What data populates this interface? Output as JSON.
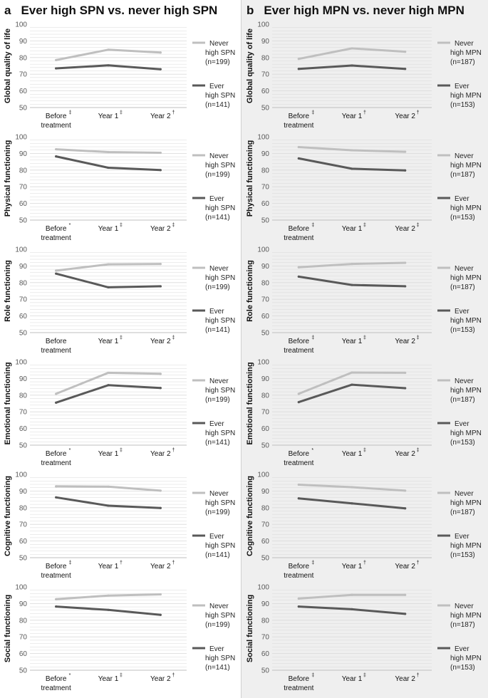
{
  "panels": [
    {
      "letter": "a",
      "title": "Ever high SPN vs. never high SPN"
    },
    {
      "letter": "b",
      "title": "Ever high MPN vs. never high MPN"
    }
  ],
  "colors": {
    "never": "#bfbfbf",
    "ever": "#595959",
    "grid": "#d9d9d9",
    "axis": "#bfbfbf"
  },
  "chart_data": [
    {
      "type": "line",
      "panel": "a",
      "ylabel": "Global quality of life",
      "categories": [
        "Before treatment",
        "Year 1",
        "Year 2"
      ],
      "significance": [
        "‡",
        "‡",
        "†"
      ],
      "ylim": [
        50,
        100
      ],
      "yticks": [
        50,
        60,
        70,
        80,
        90,
        100
      ],
      "series": [
        {
          "name": "Never high SPN (n=199)",
          "key": "never",
          "legend": [
            "Never",
            "high SPN",
            "(n=199)"
          ],
          "values": [
            78.5,
            84.7,
            83.0
          ]
        },
        {
          "name": "Ever high SPN (n=141)",
          "key": "ever",
          "legend": [
            "Ever",
            "high SPN",
            "(n=141)"
          ],
          "values": [
            73.5,
            75.3,
            73.0
          ]
        }
      ]
    },
    {
      "type": "line",
      "panel": "a",
      "ylabel": "Physical functioning",
      "categories": [
        "Before treatment",
        "Year 1",
        "Year 2"
      ],
      "significance": [
        "*",
        "‡",
        "‡"
      ],
      "ylim": [
        50,
        100
      ],
      "yticks": [
        50,
        60,
        70,
        80,
        90,
        100
      ],
      "series": [
        {
          "name": "Never high SPN (n=199)",
          "key": "never",
          "legend": [
            "Never",
            "high SPN",
            "(n=199)"
          ],
          "values": [
            92.5,
            90.8,
            90.4
          ]
        },
        {
          "name": "Ever high SPN (n=141)",
          "key": "ever",
          "legend": [
            "Ever",
            "high SPN",
            "(n=141)"
          ],
          "values": [
            88.2,
            81.4,
            80.0
          ]
        }
      ]
    },
    {
      "type": "line",
      "panel": "a",
      "ylabel": "Role functioning",
      "categories": [
        "Before treatment",
        "Year 1",
        "Year 2"
      ],
      "significance": [
        "",
        "‡",
        "‡"
      ],
      "ylim": [
        50,
        100
      ],
      "yticks": [
        50,
        60,
        70,
        80,
        90,
        100
      ],
      "series": [
        {
          "name": "Never high SPN (n=199)",
          "key": "never",
          "legend": [
            "Never",
            "high SPN",
            "(n=199)"
          ],
          "values": [
            87.2,
            91.0,
            91.2
          ]
        },
        {
          "name": "Ever high SPN (n=141)",
          "key": "ever",
          "legend": [
            "Ever",
            "high SPN",
            "(n=141)"
          ],
          "values": [
            85.4,
            77.2,
            77.8
          ]
        }
      ]
    },
    {
      "type": "line",
      "panel": "a",
      "ylabel": "Emotional functioning",
      "categories": [
        "Before treatment",
        "Year 1",
        "Year 2"
      ],
      "significance": [
        "*",
        "‡",
        "†"
      ],
      "ylim": [
        50,
        100
      ],
      "yticks": [
        50,
        60,
        70,
        80,
        90,
        100
      ],
      "series": [
        {
          "name": "Never high SPN (n=199)",
          "key": "never",
          "legend": [
            "Never",
            "high SPN",
            "(n=199)"
          ],
          "values": [
            80.8,
            93.4,
            92.8
          ]
        },
        {
          "name": "Ever high SPN (n=141)",
          "key": "ever",
          "legend": [
            "Ever",
            "high SPN",
            "(n=141)"
          ],
          "values": [
            75.5,
            86.0,
            84.3
          ]
        }
      ]
    },
    {
      "type": "line",
      "panel": "a",
      "ylabel": "Cognitive functioning",
      "categories": [
        "Before treatment",
        "Year 1",
        "Year 2"
      ],
      "significance": [
        "‡",
        "†",
        "†"
      ],
      "ylim": [
        50,
        100
      ],
      "yticks": [
        50,
        60,
        70,
        80,
        90,
        100
      ],
      "series": [
        {
          "name": "Never high SPN (n=199)",
          "key": "never",
          "legend": [
            "Never",
            "high SPN",
            "(n=199)"
          ],
          "values": [
            92.8,
            92.6,
            90.2
          ]
        },
        {
          "name": "Ever high SPN (n=141)",
          "key": "ever",
          "legend": [
            "Ever",
            "high SPN",
            "(n=141)"
          ],
          "values": [
            86.2,
            81.2,
            79.8
          ]
        }
      ]
    },
    {
      "type": "line",
      "panel": "a",
      "ylabel": "Social functioning",
      "categories": [
        "Before treatment",
        "Year 1",
        "Year 2"
      ],
      "significance": [
        "*",
        "‡",
        "†"
      ],
      "ylim": [
        50,
        100
      ],
      "yticks": [
        50,
        60,
        70,
        80,
        90,
        100
      ],
      "series": [
        {
          "name": "Never high SPN (n=199)",
          "key": "never",
          "legend": [
            "Never",
            "high SPN",
            "(n=199)"
          ],
          "values": [
            92.6,
            94.8,
            95.5
          ]
        },
        {
          "name": "Ever high SPN (n=141)",
          "key": "ever",
          "legend": [
            "Ever",
            "high SPN",
            "(n=141)"
          ],
          "values": [
            88.2,
            86.2,
            83.2
          ]
        }
      ]
    },
    {
      "type": "line",
      "panel": "b",
      "ylabel": "Global quality of life",
      "categories": [
        "Before treatment",
        "Year 1",
        "Year 2"
      ],
      "significance": [
        "‡",
        "†",
        "†"
      ],
      "ylim": [
        50,
        100
      ],
      "yticks": [
        50,
        60,
        70,
        80,
        90,
        100
      ],
      "series": [
        {
          "name": "Never high MPN (n=187)",
          "key": "never",
          "legend": [
            "Never",
            "high MPN",
            "(n=187)"
          ],
          "values": [
            79.2,
            85.5,
            83.5
          ]
        },
        {
          "name": "Ever high MPN (n=153)",
          "key": "ever",
          "legend": [
            "Ever",
            "high MPN",
            "(n=153)"
          ],
          "values": [
            73.2,
            75.2,
            73.2
          ]
        }
      ]
    },
    {
      "type": "line",
      "panel": "b",
      "ylabel": "Physical functioning",
      "categories": [
        "Before treatment",
        "Year 1",
        "Year 2"
      ],
      "significance": [
        "‡",
        "‡",
        "‡"
      ],
      "ylim": [
        50,
        100
      ],
      "yticks": [
        50,
        60,
        70,
        80,
        90,
        100
      ],
      "series": [
        {
          "name": "Never high MPN (n=187)",
          "key": "never",
          "legend": [
            "Never",
            "high MPN",
            "(n=187)"
          ],
          "values": [
            93.8,
            91.9,
            91.0
          ]
        },
        {
          "name": "Ever high MPN (n=153)",
          "key": "ever",
          "legend": [
            "Ever",
            "high MPN",
            "(n=153)"
          ],
          "values": [
            87.0,
            80.8,
            79.8
          ]
        }
      ]
    },
    {
      "type": "line",
      "panel": "b",
      "ylabel": "Role functioning",
      "categories": [
        "Before treatment",
        "Year 1",
        "Year 2"
      ],
      "significance": [
        "‡",
        "‡",
        "‡"
      ],
      "ylim": [
        50,
        100
      ],
      "yticks": [
        50,
        60,
        70,
        80,
        90,
        100
      ],
      "series": [
        {
          "name": "Never high MPN (n=187)",
          "key": "never",
          "legend": [
            "Never",
            "high MPN",
            "(n=187)"
          ],
          "values": [
            89.2,
            91.2,
            91.9
          ]
        },
        {
          "name": "Ever high MPN (n=153)",
          "key": "ever",
          "legend": [
            "Ever",
            "high MPN",
            "(n=153)"
          ],
          "values": [
            83.6,
            78.6,
            77.8
          ]
        }
      ]
    },
    {
      "type": "line",
      "panel": "b",
      "ylabel": "Emotional functioning",
      "categories": [
        "Before treatment",
        "Year 1",
        "Year 2"
      ],
      "significance": [
        "*",
        "‡",
        "‡"
      ],
      "ylim": [
        50,
        100
      ],
      "yticks": [
        50,
        60,
        70,
        80,
        90,
        100
      ],
      "series": [
        {
          "name": "Never high MPN (n=187)",
          "key": "never",
          "legend": [
            "Never",
            "high MPN",
            "(n=187)"
          ],
          "values": [
            80.8,
            93.6,
            93.4
          ]
        },
        {
          "name": "Ever high MPN (n=153)",
          "key": "ever",
          "legend": [
            "Ever",
            "high MPN",
            "(n=153)"
          ],
          "values": [
            75.8,
            86.3,
            84.2
          ]
        }
      ]
    },
    {
      "type": "line",
      "panel": "b",
      "ylabel": "Cognitive functioning",
      "categories": [
        "Before treatment",
        "Year 1",
        "Year 2"
      ],
      "significance": [
        "‡",
        "†",
        "†"
      ],
      "ylim": [
        50,
        100
      ],
      "yticks": [
        50,
        60,
        70,
        80,
        90,
        100
      ],
      "series": [
        {
          "name": "Never high MPN (n=187)",
          "key": "never",
          "legend": [
            "Never",
            "high MPN",
            "(n=187)"
          ],
          "values": [
            93.8,
            92.3,
            90.2
          ]
        },
        {
          "name": "Ever high MPN (n=153)",
          "key": "ever",
          "legend": [
            "Ever",
            "high MPN",
            "(n=153)"
          ],
          "values": [
            85.6,
            82.6,
            79.6
          ]
        }
      ]
    },
    {
      "type": "line",
      "panel": "b",
      "ylabel": "Social functioning",
      "categories": [
        "Before treatment",
        "Year 1",
        "Year 2"
      ],
      "significance": [
        "‡",
        "‡",
        "†"
      ],
      "ylim": [
        50,
        100
      ],
      "yticks": [
        50,
        60,
        70,
        80,
        90,
        100
      ],
      "series": [
        {
          "name": "Never high MPN (n=187)",
          "key": "never",
          "legend": [
            "Never",
            "high MPN",
            "(n=187)"
          ],
          "values": [
            93.0,
            95.2,
            95.2
          ]
        },
        {
          "name": "Ever high MPN (n=153)",
          "key": "ever",
          "legend": [
            "Ever",
            "high MPN",
            "(n=153)"
          ],
          "values": [
            88.2,
            86.6,
            83.8
          ]
        }
      ]
    }
  ]
}
